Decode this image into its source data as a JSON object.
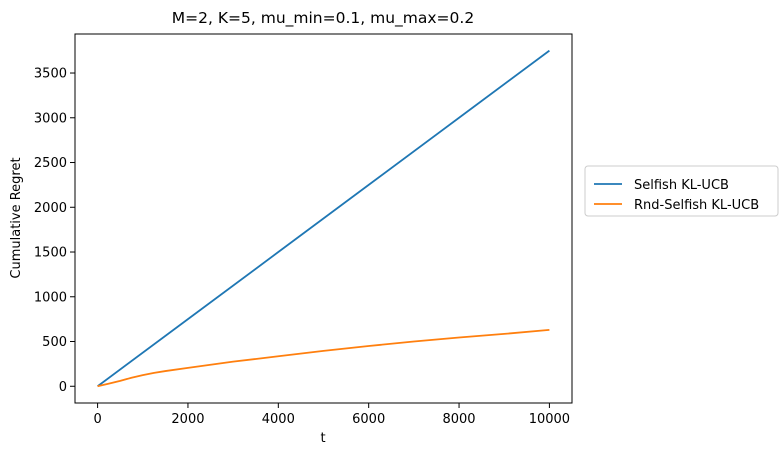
{
  "chart_data": {
    "type": "line",
    "title": "M=2, K=5, mu_min=0.1, mu_max=0.2",
    "xlabel": "t",
    "ylabel": "Cumulative Regret",
    "xlim": [
      -500,
      10500
    ],
    "ylim": [
      -187,
      3936
    ],
    "xticks": [
      0,
      2000,
      4000,
      6000,
      8000,
      10000
    ],
    "yticks": [
      0,
      500,
      1000,
      1500,
      2000,
      2500,
      3000,
      3500
    ],
    "legend_position": "right-outside",
    "grid": false,
    "series": [
      {
        "name": "Selfish KL-UCB",
        "color": "#1f77b4",
        "x": [
          0,
          2000,
          4000,
          6000,
          8000,
          10000
        ],
        "y": [
          0,
          750,
          1500,
          2250,
          3000,
          3750
        ]
      },
      {
        "name": "Rnd-Selfish KL-UCB",
        "color": "#ff7f0e",
        "x": [
          0,
          250,
          500,
          750,
          1000,
          1250,
          1500,
          2000,
          2500,
          3000,
          3500,
          4000,
          5000,
          6000,
          7000,
          8000,
          9000,
          10000
        ],
        "y": [
          0,
          30,
          60,
          95,
          125,
          150,
          170,
          205,
          240,
          275,
          305,
          335,
          395,
          450,
          500,
          545,
          585,
          630
        ]
      }
    ]
  }
}
